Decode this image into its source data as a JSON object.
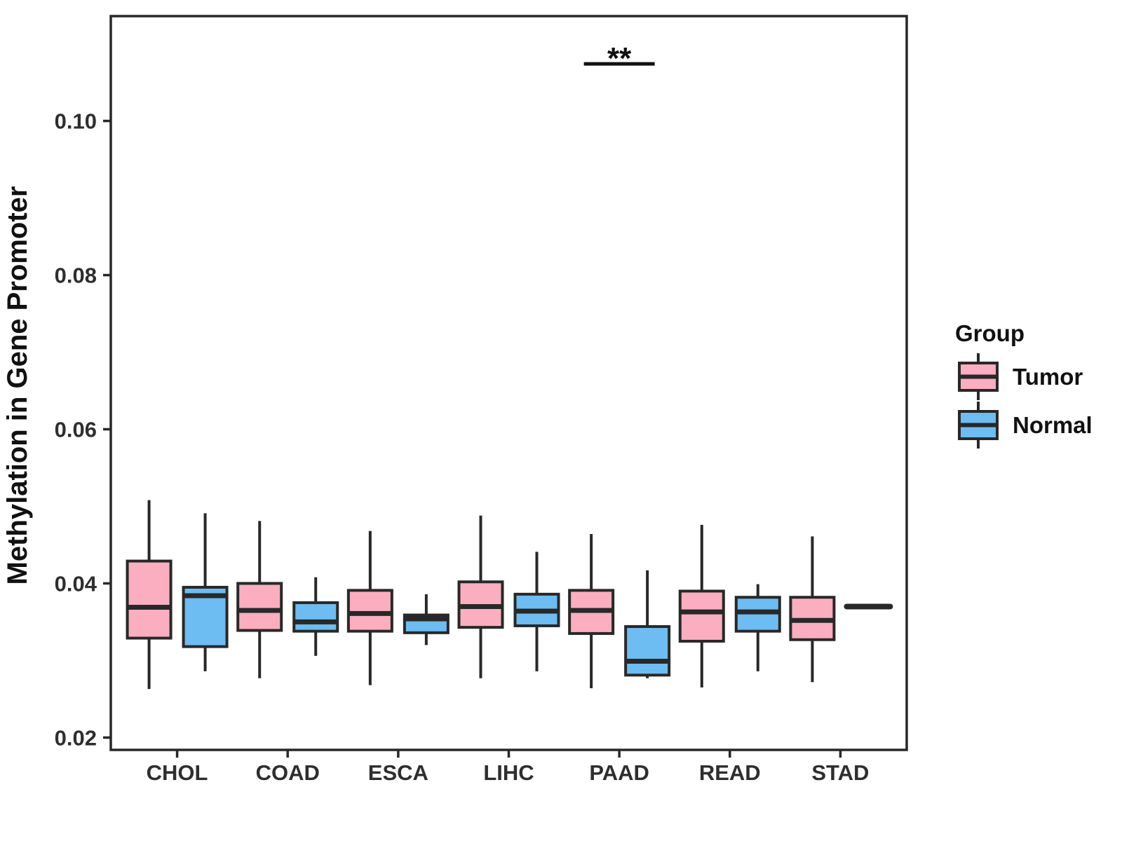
{
  "figure": {
    "background": "#ffffff",
    "y_axis_title": "Methylation in Gene Promoter"
  },
  "legend": {
    "title": "Group",
    "items": [
      {
        "label": "Tumor",
        "color": "#FAAEBF"
      },
      {
        "label": "Normal",
        "color": "#6DBCF2"
      }
    ]
  },
  "chart_data": {
    "type": "boxplot",
    "title": "",
    "xlabel": "",
    "ylabel": "Methylation in Gene Promoter",
    "categories": [
      "CHOL",
      "COAD",
      "ESCA",
      "LIHC",
      "PAAD",
      "READ",
      "STAD"
    ],
    "groups": [
      "Tumor",
      "Normal"
    ],
    "ylim": [
      0.0184,
      0.1136
    ],
    "grid": false,
    "legend_position": "right",
    "y_ticks": [
      {
        "value": 0.02,
        "label": "0.02"
      },
      {
        "value": 0.04,
        "label": "0.04"
      },
      {
        "value": 0.06,
        "label": "0.06"
      },
      {
        "value": 0.08,
        "label": "0.08"
      },
      {
        "value": 0.1,
        "label": "0.10"
      }
    ],
    "colors": {
      "Tumor": "#FAAEBF",
      "Normal": "#6DBCF2",
      "stroke": "#282828"
    },
    "series": [
      {
        "name": "Tumor",
        "boxes": [
          {
            "category": "CHOL",
            "min": 0.0263,
            "q1": 0.0329,
            "median": 0.0369,
            "q3": 0.0429,
            "max": 0.0508
          },
          {
            "category": "COAD",
            "min": 0.0277,
            "q1": 0.0339,
            "median": 0.0365,
            "q3": 0.04,
            "max": 0.0481
          },
          {
            "category": "ESCA",
            "min": 0.0268,
            "q1": 0.0338,
            "median": 0.0361,
            "q3": 0.0391,
            "max": 0.0468
          },
          {
            "category": "LIHC",
            "min": 0.0277,
            "q1": 0.0343,
            "median": 0.037,
            "q3": 0.0402,
            "max": 0.0488
          },
          {
            "category": "PAAD",
            "min": 0.0264,
            "q1": 0.0335,
            "median": 0.0365,
            "q3": 0.0391,
            "max": 0.0464
          },
          {
            "category": "READ",
            "min": 0.0265,
            "q1": 0.0325,
            "median": 0.0363,
            "q3": 0.039,
            "max": 0.0476
          },
          {
            "category": "STAD",
            "min": 0.0272,
            "q1": 0.0327,
            "median": 0.0352,
            "q3": 0.0382,
            "max": 0.0461
          }
        ]
      },
      {
        "name": "Normal",
        "boxes": [
          {
            "category": "CHOL",
            "min": 0.0286,
            "q1": 0.0318,
            "median": 0.0384,
            "q3": 0.0395,
            "max": 0.0491
          },
          {
            "category": "COAD",
            "min": 0.0306,
            "q1": 0.0338,
            "median": 0.035,
            "q3": 0.0375,
            "max": 0.0408
          },
          {
            "category": "ESCA",
            "min": 0.032,
            "q1": 0.0336,
            "median": 0.0354,
            "q3": 0.0359,
            "max": 0.0386
          },
          {
            "category": "LIHC",
            "min": 0.0286,
            "q1": 0.0345,
            "median": 0.0364,
            "q3": 0.0386,
            "max": 0.0441
          },
          {
            "category": "PAAD",
            "min": 0.0277,
            "q1": 0.0281,
            "median": 0.0299,
            "q3": 0.0344,
            "max": 0.0417
          },
          {
            "category": "READ",
            "min": 0.0286,
            "q1": 0.0338,
            "median": 0.0363,
            "q3": 0.0382,
            "max": 0.0399
          },
          {
            "category": "STAD",
            "min": 0.037,
            "q1": 0.037,
            "median": 0.037,
            "q3": 0.037,
            "max": 0.037,
            "flat": true
          }
        ]
      }
    ],
    "significance": {
      "category": "PAAD",
      "label": "**",
      "y": 0.1074
    }
  }
}
